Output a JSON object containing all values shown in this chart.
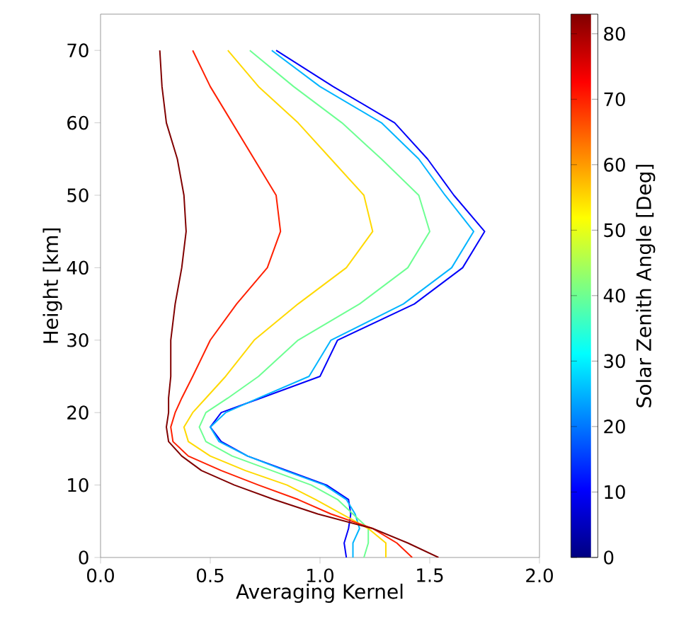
{
  "chart_data": {
    "type": "line",
    "xlabel": "Averaging Kernel",
    "ylabel": "Height [km]",
    "clabel": "Solar Zenith Angle [Deg]",
    "xlim": [
      0,
      2
    ],
    "xticks": [
      {
        "value": 0,
        "label": "0.0"
      },
      {
        "value": 0.5,
        "label": "0.5"
      },
      {
        "value": 1,
        "label": "1.0"
      },
      {
        "value": 1.5,
        "label": "1.5"
      },
      {
        "value": 2,
        "label": "2.0"
      }
    ],
    "ylim": [
      0,
      75
    ],
    "yticks": [
      0,
      10,
      20,
      30,
      40,
      50,
      60,
      70
    ],
    "clim": [
      0,
      83
    ],
    "cticks": [
      0,
      10,
      20,
      30,
      40,
      50,
      60,
      70,
      80
    ],
    "grid": false,
    "marker": "none",
    "line_style": "solid",
    "series": [
      {
        "color": "#0000fa",
        "x": [
          1.12,
          1.11,
          1.13,
          1.14,
          1.13,
          1.03,
          0.85,
          0.67,
          0.55,
          0.5,
          0.55,
          0.73,
          1.0,
          1.08,
          1.43,
          1.65,
          1.75,
          1.61,
          1.49,
          1.34,
          1.06,
          0.8
        ],
        "values": [
          0,
          2,
          4,
          6,
          8,
          10,
          12,
          14,
          16,
          18,
          20,
          22,
          25,
          30,
          35,
          40,
          45,
          50,
          55,
          60,
          65,
          70
        ]
      },
      {
        "color": "#00b4ff",
        "x": [
          1.15,
          1.15,
          1.18,
          1.16,
          1.12,
          1.02,
          0.84,
          0.67,
          0.54,
          0.5,
          0.57,
          0.72,
          0.95,
          1.05,
          1.38,
          1.6,
          1.7,
          1.57,
          1.45,
          1.28,
          1.0,
          0.78
        ],
        "values": [
          0,
          2,
          4,
          6,
          8,
          10,
          12,
          14,
          16,
          18,
          20,
          22,
          25,
          30,
          35,
          40,
          45,
          50,
          55,
          60,
          65,
          70
        ]
      },
      {
        "color": "#6dff92",
        "x": [
          1.2,
          1.22,
          1.22,
          1.15,
          1.08,
          0.96,
          0.78,
          0.6,
          0.48,
          0.45,
          0.48,
          0.58,
          0.72,
          0.9,
          1.18,
          1.4,
          1.5,
          1.45,
          1.28,
          1.1,
          0.88,
          0.68
        ],
        "values": [
          0,
          2,
          4,
          6,
          8,
          10,
          12,
          14,
          16,
          18,
          20,
          22,
          25,
          30,
          35,
          40,
          45,
          50,
          55,
          60,
          65,
          70
        ]
      },
      {
        "color": "#ffd900",
        "x": [
          1.3,
          1.3,
          1.22,
          1.1,
          0.98,
          0.85,
          0.66,
          0.5,
          0.4,
          0.38,
          0.42,
          0.48,
          0.57,
          0.7,
          0.9,
          1.12,
          1.24,
          1.2,
          1.05,
          0.9,
          0.72,
          0.58
        ],
        "values": [
          0,
          2,
          4,
          6,
          8,
          10,
          12,
          14,
          16,
          18,
          20,
          22,
          25,
          30,
          35,
          40,
          45,
          50,
          55,
          60,
          65,
          70
        ]
      },
      {
        "color": "#ff2000",
        "x": [
          1.42,
          1.35,
          1.24,
          1.05,
          0.9,
          0.72,
          0.55,
          0.4,
          0.33,
          0.32,
          0.34,
          0.37,
          0.42,
          0.5,
          0.62,
          0.76,
          0.82,
          0.8,
          0.7,
          0.6,
          0.5,
          0.42
        ],
        "values": [
          0,
          2,
          4,
          6,
          8,
          10,
          12,
          14,
          16,
          18,
          20,
          22,
          25,
          30,
          35,
          40,
          45,
          50,
          55,
          60,
          65,
          70
        ]
      },
      {
        "color": "#800000",
        "x": [
          1.54,
          1.4,
          1.24,
          0.99,
          0.79,
          0.61,
          0.46,
          0.37,
          0.31,
          0.3,
          0.31,
          0.31,
          0.32,
          0.32,
          0.34,
          0.37,
          0.39,
          0.38,
          0.35,
          0.3,
          0.28,
          0.27
        ],
        "values": [
          0,
          2,
          4,
          6,
          8,
          10,
          12,
          14,
          16,
          18,
          20,
          22,
          25,
          30,
          35,
          40,
          45,
          50,
          55,
          60,
          65,
          70
        ]
      }
    ]
  }
}
